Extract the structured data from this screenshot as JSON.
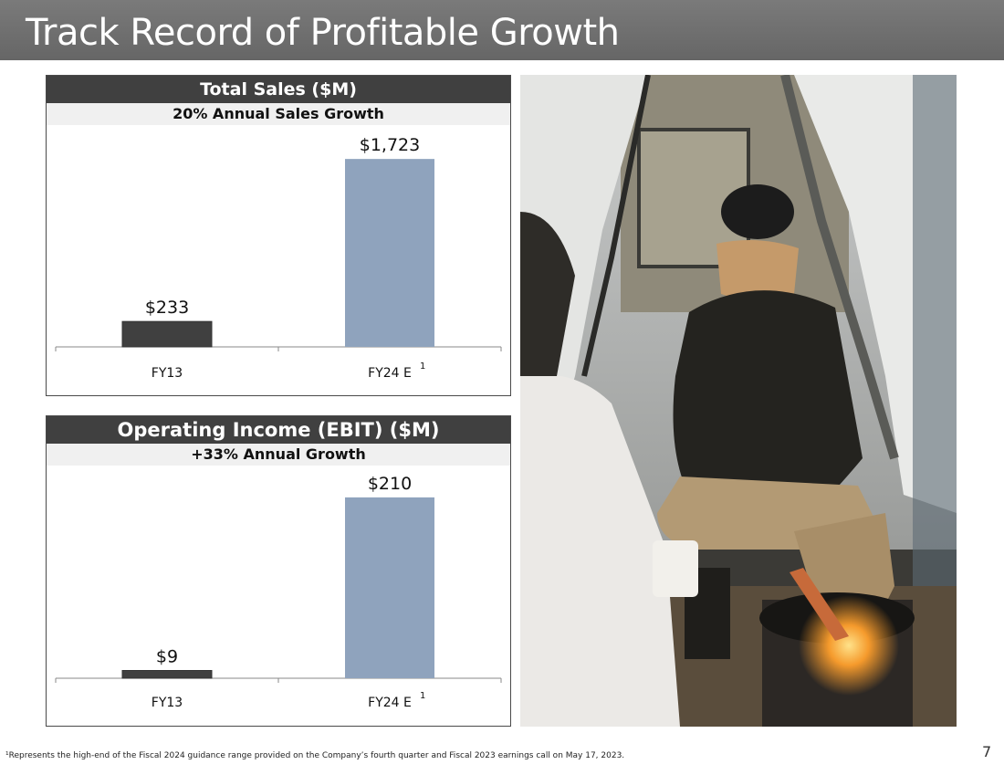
{
  "slide": {
    "title": "Track Record of Profitable Growth",
    "footnote": "¹Represents the high-end of the Fiscal 2024 guidance range provided on the Company’s fourth quarter and Fiscal 2023 earnings call on May 17, 2023.",
    "page_number": "7"
  },
  "chart_data": [
    {
      "type": "bar",
      "title": "Total Sales ($M)",
      "subtitle": "20% Annual Sales Growth",
      "categories": [
        "FY13",
        "FY24 E"
      ],
      "category_superscripts": [
        "",
        "1"
      ],
      "values": [
        233,
        1723
      ],
      "value_labels": [
        "$233",
        "$1,723"
      ],
      "colors": [
        "#404040",
        "#8fa3bd"
      ],
      "ylim": [
        0,
        1900
      ]
    },
    {
      "type": "bar",
      "title": "Operating Income (EBIT) ($M)",
      "subtitle": "+33% Annual Growth",
      "categories": [
        "FY13",
        "FY24 E"
      ],
      "category_superscripts": [
        "",
        "1"
      ],
      "values": [
        9,
        210
      ],
      "value_labels": [
        "$9",
        "$210"
      ],
      "colors": [
        "#404040",
        "#8fa3bd"
      ],
      "ylim": [
        0,
        230
      ]
    }
  ]
}
